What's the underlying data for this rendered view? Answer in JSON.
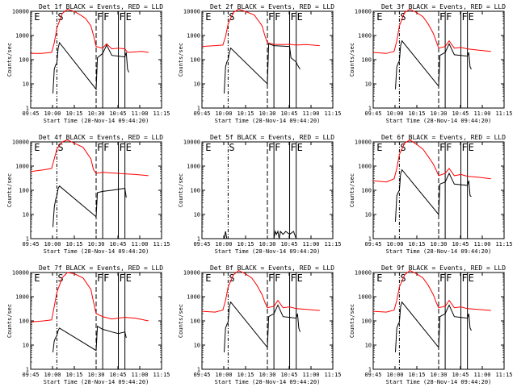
{
  "chart_data": {
    "type": "line",
    "xaxis": {
      "label": "Start Time (28-Nov-14 09:44:20)",
      "ticks": [
        "09:45",
        "10:00",
        "10:15",
        "10:30",
        "10:45",
        "11:00",
        "11:15"
      ],
      "range_min": [
        0,
        100
      ]
    },
    "yaxis": {
      "label": "Counts/sec",
      "scale": "log",
      "range": [
        1,
        10000
      ],
      "ticks": [
        "1",
        "10",
        "100",
        "1000",
        "10000"
      ]
    },
    "markers": [
      {
        "label": "E",
        "t": 2,
        "style": "none"
      },
      {
        "label": "S",
        "t": 20,
        "style": "dashdot"
      },
      {
        "label": "F",
        "t": 50,
        "style": "dash"
      },
      {
        "label": "F",
        "t": 55,
        "style": "solid"
      },
      {
        "label": "F",
        "t": 67,
        "style": "solid"
      },
      {
        "label": "E",
        "t": 72,
        "style": "solid"
      }
    ],
    "panels": [
      {
        "title": "Det 1f BLACK = Events, RED = LLD",
        "lld": [
          [
            0,
            180
          ],
          [
            8,
            180
          ],
          [
            16,
            200
          ],
          [
            18,
            500
          ],
          [
            20,
            2000
          ],
          [
            24,
            8000
          ],
          [
            28,
            12000
          ],
          [
            33,
            10000
          ],
          [
            38,
            7000
          ],
          [
            42,
            5000
          ],
          [
            46,
            2500
          ],
          [
            48,
            1000
          ],
          [
            50,
            350
          ],
          [
            55,
            300
          ],
          [
            58,
            450
          ],
          [
            62,
            280
          ],
          [
            67,
            300
          ],
          [
            72,
            280
          ],
          [
            74,
            200
          ],
          [
            85,
            220
          ],
          [
            90,
            200
          ]
        ],
        "events": [
          [
            17,
            4
          ],
          [
            18,
            40
          ],
          [
            19,
            60
          ],
          [
            20,
            70
          ],
          [
            21,
            300
          ],
          [
            22,
            500
          ],
          [
            50,
            6
          ],
          [
            51,
            120
          ],
          [
            55,
            180
          ],
          [
            58,
            400
          ],
          [
            62,
            150
          ],
          [
            67,
            140
          ],
          [
            72,
            130
          ],
          [
            73,
            200
          ],
          [
            74,
            40
          ],
          [
            75,
            30
          ]
        ]
      },
      {
        "title": "Det 2f BLACK = Events, RED = LLD",
        "lld": [
          [
            0,
            350
          ],
          [
            10,
            380
          ],
          [
            16,
            400
          ],
          [
            18,
            900
          ],
          [
            20,
            3000
          ],
          [
            24,
            9000
          ],
          [
            28,
            12000
          ],
          [
            33,
            10000
          ],
          [
            40,
            7000
          ],
          [
            46,
            2500
          ],
          [
            48,
            1000
          ],
          [
            50,
            500
          ],
          [
            55,
            430
          ],
          [
            62,
            420
          ],
          [
            67,
            430
          ],
          [
            72,
            400
          ],
          [
            80,
            420
          ],
          [
            90,
            380
          ]
        ],
        "events": [
          [
            17,
            4
          ],
          [
            18,
            50
          ],
          [
            19,
            80
          ],
          [
            20,
            100
          ],
          [
            21,
            200
          ],
          [
            22,
            300
          ],
          [
            50,
            10
          ],
          [
            51,
            450
          ],
          [
            55,
            380
          ],
          [
            62,
            360
          ],
          [
            67,
            350
          ],
          [
            68,
            120
          ],
          [
            72,
            80
          ],
          [
            73,
            60
          ],
          [
            75,
            40
          ]
        ]
      },
      {
        "title": "Det 3f BLACK = Events, RED = LLD",
        "lld": [
          [
            0,
            200
          ],
          [
            10,
            180
          ],
          [
            16,
            220
          ],
          [
            18,
            600
          ],
          [
            20,
            2500
          ],
          [
            24,
            9000
          ],
          [
            28,
            12000
          ],
          [
            33,
            9000
          ],
          [
            38,
            6000
          ],
          [
            42,
            3000
          ],
          [
            46,
            1200
          ],
          [
            48,
            600
          ],
          [
            50,
            300
          ],
          [
            55,
            350
          ],
          [
            58,
            600
          ],
          [
            62,
            300
          ],
          [
            67,
            320
          ],
          [
            72,
            280
          ],
          [
            80,
            250
          ],
          [
            90,
            220
          ]
        ],
        "events": [
          [
            17,
            6
          ],
          [
            18,
            50
          ],
          [
            19,
            70
          ],
          [
            20,
            90
          ],
          [
            21,
            400
          ],
          [
            22,
            600
          ],
          [
            50,
            8
          ],
          [
            51,
            150
          ],
          [
            55,
            200
          ],
          [
            58,
            450
          ],
          [
            62,
            160
          ],
          [
            67,
            150
          ],
          [
            72,
            140
          ],
          [
            73,
            200
          ],
          [
            74,
            50
          ],
          [
            75,
            40
          ]
        ]
      },
      {
        "title": "Det 4f BLACK = Events, RED = LLD",
        "lld": [
          [
            0,
            600
          ],
          [
            10,
            700
          ],
          [
            16,
            800
          ],
          [
            18,
            2000
          ],
          [
            20,
            5000
          ],
          [
            24,
            10000
          ],
          [
            28,
            12000
          ],
          [
            33,
            9000
          ],
          [
            40,
            6000
          ],
          [
            46,
            2000
          ],
          [
            48,
            700
          ],
          [
            50,
            500
          ],
          [
            55,
            550
          ],
          [
            62,
            520
          ],
          [
            67,
            500
          ],
          [
            72,
            480
          ],
          [
            80,
            450
          ],
          [
            90,
            400
          ]
        ],
        "events": [
          [
            17,
            3
          ],
          [
            18,
            20
          ],
          [
            19,
            40
          ],
          [
            20,
            60
          ],
          [
            21,
            120
          ],
          [
            22,
            150
          ],
          [
            50,
            8
          ],
          [
            51,
            80
          ],
          [
            55,
            90
          ],
          [
            62,
            100
          ],
          [
            67,
            110
          ],
          [
            72,
            120
          ],
          [
            73,
            50
          ]
        ]
      },
      {
        "title": "Det 5f BLACK = Events, RED = LLD",
        "lld": [],
        "events": [
          [
            17,
            1
          ],
          [
            18,
            2
          ],
          [
            19,
            1
          ],
          [
            55,
            1
          ],
          [
            56,
            2
          ],
          [
            57,
            1.5
          ],
          [
            58,
            2
          ],
          [
            59,
            1
          ],
          [
            60,
            2
          ],
          [
            62,
            1.5
          ],
          [
            64,
            2
          ],
          [
            67,
            1.5
          ],
          [
            70,
            2
          ],
          [
            72,
            1
          ]
        ]
      },
      {
        "title": "Det 6f BLACK = Events, RED = LLD",
        "lld": [
          [
            0,
            250
          ],
          [
            10,
            220
          ],
          [
            16,
            300
          ],
          [
            18,
            800
          ],
          [
            20,
            3000
          ],
          [
            24,
            9000
          ],
          [
            28,
            12000
          ],
          [
            33,
            8000
          ],
          [
            38,
            5000
          ],
          [
            42,
            2500
          ],
          [
            46,
            1200
          ],
          [
            48,
            700
          ],
          [
            50,
            400
          ],
          [
            55,
            500
          ],
          [
            58,
            800
          ],
          [
            62,
            400
          ],
          [
            67,
            450
          ],
          [
            72,
            380
          ],
          [
            80,
            350
          ],
          [
            90,
            300
          ]
        ],
        "events": [
          [
            17,
            5
          ],
          [
            18,
            60
          ],
          [
            19,
            80
          ],
          [
            20,
            100
          ],
          [
            21,
            500
          ],
          [
            22,
            700
          ],
          [
            50,
            10
          ],
          [
            51,
            180
          ],
          [
            55,
            220
          ],
          [
            58,
            500
          ],
          [
            62,
            180
          ],
          [
            67,
            170
          ],
          [
            72,
            160
          ],
          [
            73,
            250
          ],
          [
            74,
            60
          ],
          [
            75,
            55
          ]
        ]
      },
      {
        "title": "Det 7f BLACK = Events, RED = LLD",
        "lld": [
          [
            0,
            90
          ],
          [
            10,
            100
          ],
          [
            16,
            110
          ],
          [
            18,
            400
          ],
          [
            20,
            1500
          ],
          [
            24,
            6000
          ],
          [
            28,
            10000
          ],
          [
            33,
            9000
          ],
          [
            40,
            6000
          ],
          [
            46,
            2000
          ],
          [
            48,
            600
          ],
          [
            50,
            200
          ],
          [
            55,
            150
          ],
          [
            62,
            120
          ],
          [
            67,
            130
          ],
          [
            72,
            140
          ],
          [
            80,
            130
          ],
          [
            90,
            100
          ]
        ],
        "events": [
          [
            17,
            5
          ],
          [
            18,
            15
          ],
          [
            19,
            20
          ],
          [
            20,
            25
          ],
          [
            21,
            40
          ],
          [
            22,
            50
          ],
          [
            50,
            6
          ],
          [
            51,
            60
          ],
          [
            55,
            45
          ],
          [
            62,
            35
          ],
          [
            67,
            30
          ],
          [
            72,
            35
          ],
          [
            73,
            20
          ]
        ]
      },
      {
        "title": "Det 8f BLACK = Events, RED = LLD",
        "lld": [
          [
            0,
            250
          ],
          [
            10,
            230
          ],
          [
            16,
            280
          ],
          [
            18,
            700
          ],
          [
            20,
            2500
          ],
          [
            24,
            8000
          ],
          [
            28,
            12000
          ],
          [
            33,
            9000
          ],
          [
            38,
            6000
          ],
          [
            42,
            3000
          ],
          [
            46,
            1200
          ],
          [
            48,
            600
          ],
          [
            50,
            350
          ],
          [
            55,
            400
          ],
          [
            58,
            700
          ],
          [
            62,
            350
          ],
          [
            67,
            380
          ],
          [
            72,
            320
          ],
          [
            80,
            300
          ],
          [
            90,
            270
          ]
        ],
        "events": [
          [
            17,
            5
          ],
          [
            18,
            50
          ],
          [
            19,
            70
          ],
          [
            20,
            90
          ],
          [
            21,
            400
          ],
          [
            22,
            600
          ],
          [
            50,
            8
          ],
          [
            51,
            150
          ],
          [
            55,
            200
          ],
          [
            58,
            450
          ],
          [
            62,
            150
          ],
          [
            67,
            140
          ],
          [
            72,
            130
          ],
          [
            73,
            200
          ],
          [
            74,
            50
          ],
          [
            75,
            35
          ]
        ]
      },
      {
        "title": "Det 9f BLACK = Events, RED = LLD",
        "lld": [
          [
            0,
            250
          ],
          [
            10,
            230
          ],
          [
            16,
            280
          ],
          [
            18,
            700
          ],
          [
            20,
            2500
          ],
          [
            24,
            8000
          ],
          [
            28,
            12000
          ],
          [
            33,
            9000
          ],
          [
            38,
            6000
          ],
          [
            42,
            3000
          ],
          [
            46,
            1200
          ],
          [
            48,
            600
          ],
          [
            50,
            350
          ],
          [
            55,
            400
          ],
          [
            58,
            700
          ],
          [
            62,
            350
          ],
          [
            67,
            380
          ],
          [
            72,
            320
          ],
          [
            80,
            300
          ],
          [
            90,
            270
          ]
        ],
        "events": [
          [
            17,
            5
          ],
          [
            18,
            50
          ],
          [
            19,
            70
          ],
          [
            20,
            90
          ],
          [
            21,
            400
          ],
          [
            22,
            600
          ],
          [
            50,
            8
          ],
          [
            51,
            150
          ],
          [
            55,
            200
          ],
          [
            58,
            450
          ],
          [
            62,
            150
          ],
          [
            67,
            140
          ],
          [
            72,
            130
          ],
          [
            73,
            200
          ],
          [
            74,
            50
          ],
          [
            75,
            40
          ]
        ]
      }
    ],
    "series_colors": {
      "events": "#000000",
      "lld": "#ff0000"
    }
  }
}
